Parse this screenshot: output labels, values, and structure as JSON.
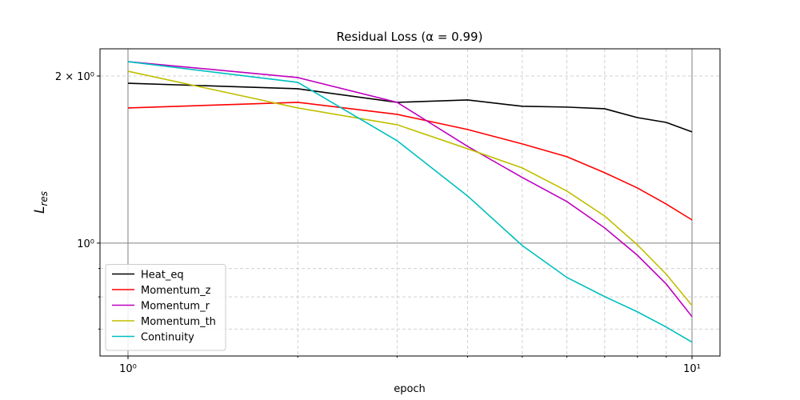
{
  "chart_data": {
    "type": "line",
    "title": "Residual Loss (α = 0.99)",
    "xlabel": "epoch",
    "ylabel": {
      "symbol": "L",
      "subscript": "res"
    },
    "x": [
      1,
      2,
      3,
      4,
      5,
      6,
      7,
      8,
      9,
      10
    ],
    "xscale": "log",
    "yscale": "log",
    "xlim": [
      0.892,
      11.21
    ],
    "ylim": [
      0.626,
      2.239
    ],
    "xticks": [
      {
        "value": 1,
        "label": "10⁰"
      },
      {
        "value": 10,
        "label": "10¹"
      }
    ],
    "yticks": [
      {
        "value": 1,
        "label": "10⁰"
      },
      {
        "value": 2,
        "label": "2 × 10⁰"
      }
    ],
    "xminor": [
      2,
      3,
      4,
      5,
      6,
      7,
      8,
      9
    ],
    "yminor": [
      0.7,
      0.8,
      0.9
    ],
    "grid": true,
    "legend": "lower left",
    "series": [
      {
        "name": "Heat_eq",
        "color": "#000000",
        "values": [
          1.941,
          1.897,
          1.793,
          1.811,
          1.764,
          1.758,
          1.746,
          1.683,
          1.65,
          1.586
        ]
      },
      {
        "name": "Momentum_z",
        "color": "#ff0000",
        "values": [
          1.752,
          1.793,
          1.706,
          1.602,
          1.509,
          1.431,
          1.339,
          1.257,
          1.176,
          1.101
        ]
      },
      {
        "name": "Momentum_r",
        "color": "#bf00bf",
        "values": [
          2.123,
          1.987,
          1.793,
          1.494,
          1.313,
          1.188,
          1.065,
          0.951,
          0.844,
          0.737
        ]
      },
      {
        "name": "Momentum_th",
        "color": "#bfbf00",
        "values": [
          2.04,
          1.752,
          1.634,
          1.479,
          1.366,
          1.241,
          1.119,
          0.993,
          0.879,
          0.772
        ]
      },
      {
        "name": "Continuity",
        "color": "#00bfbf",
        "values": [
          2.123,
          1.948,
          1.529,
          1.216,
          0.99,
          0.867,
          0.801,
          0.752,
          0.706,
          0.663
        ]
      }
    ]
  }
}
